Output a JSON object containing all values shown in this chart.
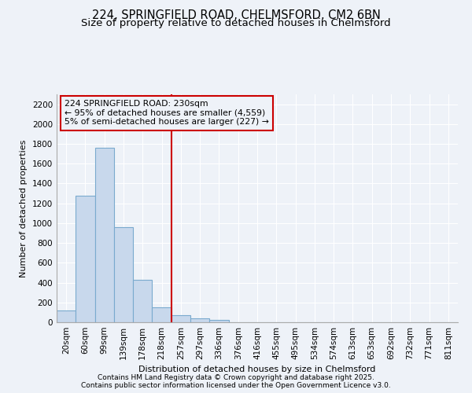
{
  "title_line1": "224, SPRINGFIELD ROAD, CHELMSFORD, CM2 6BN",
  "title_line2": "Size of property relative to detached houses in Chelmsford",
  "xlabel": "Distribution of detached houses by size in Chelmsford",
  "ylabel": "Number of detached properties",
  "categories": [
    "20sqm",
    "60sqm",
    "99sqm",
    "139sqm",
    "178sqm",
    "218sqm",
    "257sqm",
    "297sqm",
    "336sqm",
    "376sqm",
    "416sqm",
    "455sqm",
    "495sqm",
    "534sqm",
    "574sqm",
    "613sqm",
    "653sqm",
    "692sqm",
    "732sqm",
    "771sqm",
    "811sqm"
  ],
  "values": [
    120,
    1280,
    1760,
    960,
    430,
    150,
    75,
    40,
    25,
    0,
    0,
    0,
    0,
    0,
    0,
    0,
    0,
    0,
    0,
    0,
    0
  ],
  "bar_color": "#c8d8ec",
  "bar_edge_color": "#7aaace",
  "vline_x": 5.5,
  "vline_color": "#cc0000",
  "annotation_text": "224 SPRINGFIELD ROAD: 230sqm\n← 95% of detached houses are smaller (4,559)\n5% of semi-detached houses are larger (227) →",
  "annotation_box_color": "#cc0000",
  "ylim": [
    0,
    2300
  ],
  "yticks": [
    0,
    200,
    400,
    600,
    800,
    1000,
    1200,
    1400,
    1600,
    1800,
    2000,
    2200
  ],
  "background_color": "#eef2f8",
  "grid_color": "#ffffff",
  "footer_line1": "Contains HM Land Registry data © Crown copyright and database right 2025.",
  "footer_line2": "Contains public sector information licensed under the Open Government Licence v3.0.",
  "title_fontsize": 10.5,
  "subtitle_fontsize": 9.5,
  "axis_label_fontsize": 8,
  "tick_fontsize": 7.5,
  "footer_fontsize": 6.5,
  "ann_fontsize": 7.8
}
